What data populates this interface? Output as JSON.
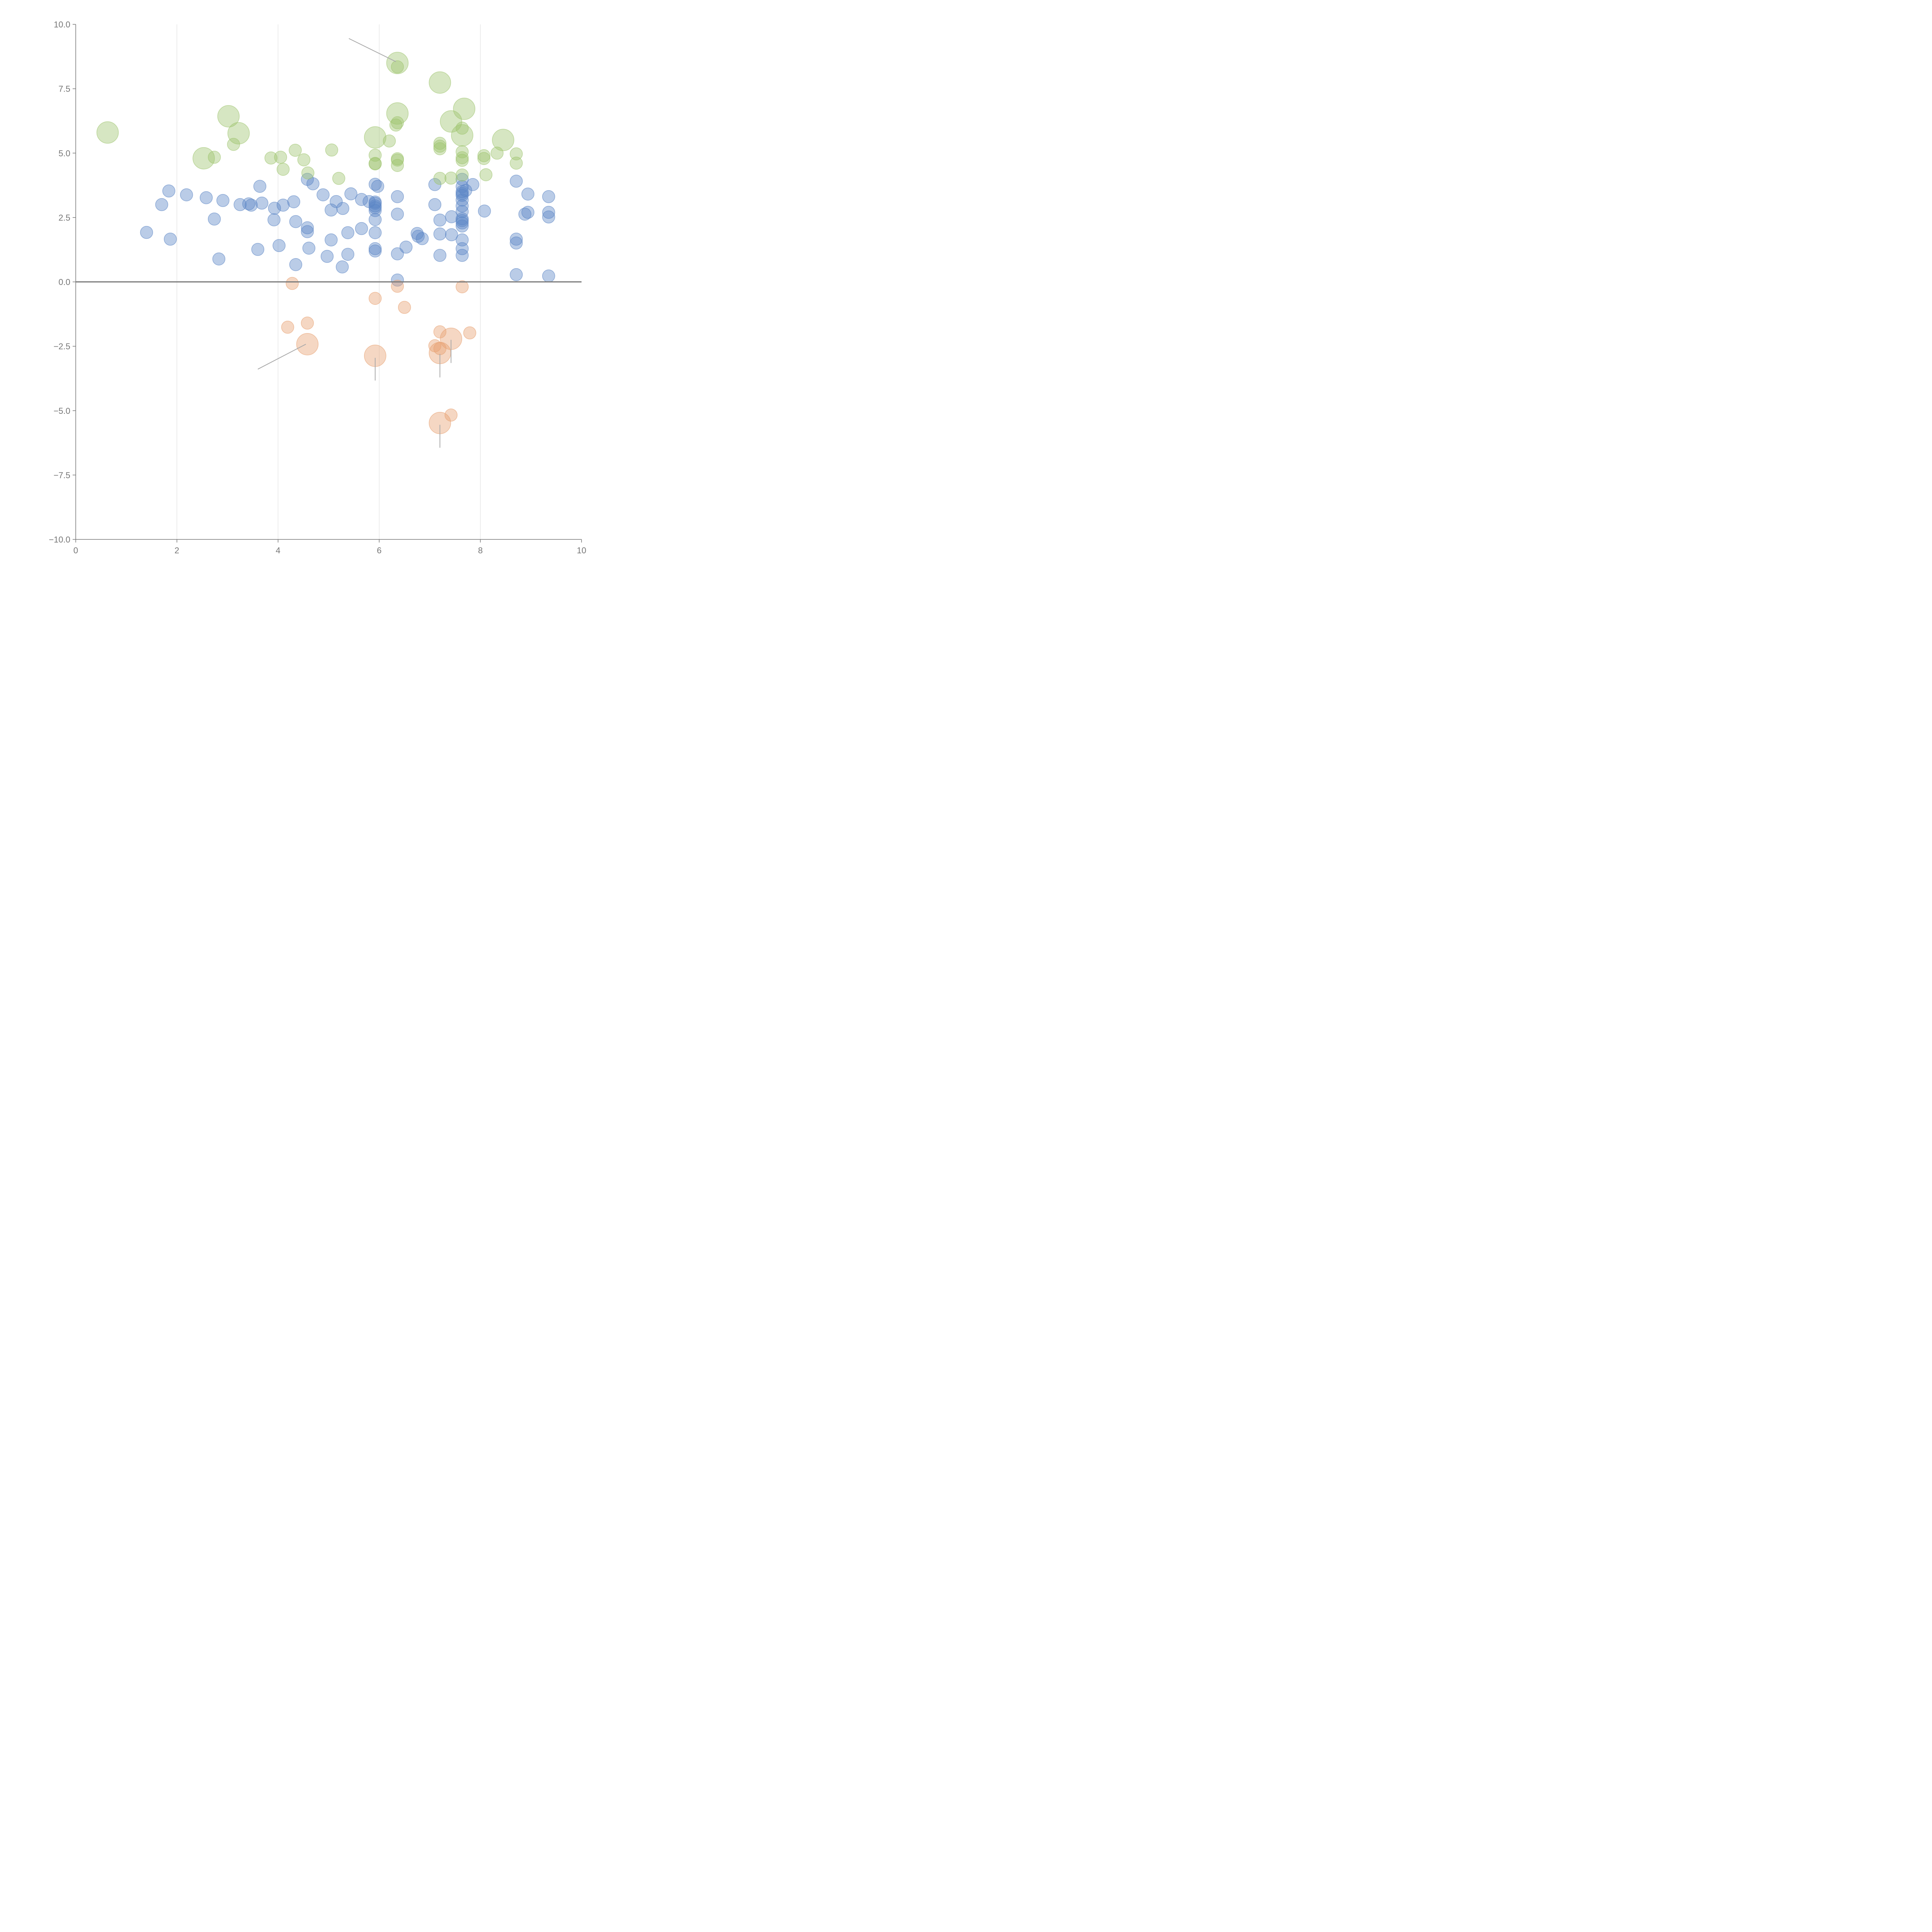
{
  "chart_data": {
    "type": "scatter",
    "subtype": "bubble",
    "title": "",
    "xlabel": "",
    "ylabel": "",
    "xlim": [
      0,
      10
    ],
    "ylim": [
      -10,
      10
    ],
    "x_ticks": [
      "0",
      "2",
      "4",
      "6",
      "8",
      "10"
    ],
    "y_ticks": [
      "10.0",
      "7.5",
      "5.0",
      "2.5",
      "0.0",
      "−2.5",
      "−5.0",
      "−7.5",
      "−10.0"
    ],
    "x_tick_values": [
      0,
      2,
      4,
      6,
      8,
      10
    ],
    "y_tick_values": [
      10,
      7.5,
      5,
      2.5,
      0,
      -2.5,
      -5,
      -7.5,
      -10
    ],
    "vertical_grid": true,
    "zero_line": true,
    "legend": "none",
    "series": [
      {
        "name": "blue",
        "color": "#5b86c5",
        "points": [
          [
            1.4,
            1.92,
            1
          ],
          [
            1.7,
            3.0,
            1
          ],
          [
            1.84,
            3.53,
            1
          ],
          [
            1.87,
            1.66,
            1
          ],
          [
            2.19,
            3.38,
            1
          ],
          [
            2.58,
            3.27,
            1
          ],
          [
            2.74,
            2.44,
            1
          ],
          [
            2.83,
            0.89,
            1
          ],
          [
            2.91,
            3.16,
            1
          ],
          [
            3.25,
            3.0,
            1
          ],
          [
            3.42,
            3.03,
            1
          ],
          [
            3.47,
            2.98,
            1
          ],
          [
            3.6,
            1.26,
            1
          ],
          [
            3.64,
            3.71,
            1
          ],
          [
            3.68,
            3.06,
            1
          ],
          [
            3.92,
            2.41,
            1
          ],
          [
            3.93,
            2.86,
            1
          ],
          [
            4.02,
            1.41,
            1
          ],
          [
            4.1,
            2.98,
            1
          ],
          [
            4.31,
            3.11,
            1
          ],
          [
            4.35,
            2.34,
            1
          ],
          [
            4.35,
            0.67,
            1
          ],
          [
            4.58,
            2.1,
            1
          ],
          [
            4.58,
            1.95,
            1
          ],
          [
            4.58,
            3.98,
            1
          ],
          [
            4.61,
            1.31,
            1
          ],
          [
            4.69,
            3.81,
            1
          ],
          [
            4.89,
            3.38,
            1
          ],
          [
            4.97,
            0.99,
            1
          ],
          [
            5.05,
            2.79,
            1
          ],
          [
            5.05,
            1.63,
            1
          ],
          [
            5.15,
            3.12,
            1
          ],
          [
            5.27,
            0.58,
            1
          ],
          [
            5.28,
            2.85,
            1
          ],
          [
            5.38,
            1.91,
            1
          ],
          [
            5.38,
            1.07,
            1
          ],
          [
            5.44,
            3.42,
            1
          ],
          [
            5.65,
            2.07,
            1
          ],
          [
            5.65,
            3.2,
            1
          ],
          [
            5.8,
            3.12,
            1
          ],
          [
            5.92,
            3.79,
            1
          ],
          [
            5.92,
            3.1,
            1
          ],
          [
            5.92,
            3.05,
            1
          ],
          [
            5.92,
            2.95,
            1
          ],
          [
            5.92,
            2.88,
            1
          ],
          [
            5.92,
            2.77,
            1
          ],
          [
            5.92,
            2.42,
            1
          ],
          [
            5.92,
            1.91,
            1
          ],
          [
            5.92,
            1.29,
            1
          ],
          [
            5.92,
            1.2,
            1
          ],
          [
            5.97,
            3.71,
            1
          ],
          [
            6.36,
            3.31,
            1
          ],
          [
            6.36,
            2.63,
            1
          ],
          [
            6.36,
            1.09,
            1
          ],
          [
            6.36,
            0.07,
            1
          ],
          [
            6.53,
            1.35,
            1
          ],
          [
            6.75,
            1.88,
            1
          ],
          [
            6.77,
            1.77,
            1
          ],
          [
            6.85,
            1.68,
            1
          ],
          [
            7.1,
            3.0,
            1
          ],
          [
            7.1,
            3.78,
            1
          ],
          [
            7.2,
            2.4,
            1
          ],
          [
            7.2,
            1.86,
            1
          ],
          [
            7.2,
            1.03,
            1
          ],
          [
            7.43,
            2.53,
            1
          ],
          [
            7.43,
            1.83,
            1
          ],
          [
            7.64,
            3.98,
            1
          ],
          [
            7.64,
            3.7,
            1
          ],
          [
            7.64,
            3.5,
            1
          ],
          [
            7.64,
            3.43,
            1
          ],
          [
            7.64,
            3.36,
            1
          ],
          [
            7.64,
            3.18,
            1
          ],
          [
            7.64,
            2.95,
            1
          ],
          [
            7.64,
            2.73,
            1
          ],
          [
            7.64,
            2.45,
            1
          ],
          [
            7.64,
            2.38,
            1
          ],
          [
            7.64,
            2.29,
            1
          ],
          [
            7.64,
            2.17,
            1
          ],
          [
            7.64,
            1.63,
            1
          ],
          [
            7.64,
            1.29,
            1
          ],
          [
            7.64,
            1.03,
            1
          ],
          [
            7.71,
            3.55,
            1
          ],
          [
            7.85,
            3.78,
            1
          ],
          [
            8.08,
            2.75,
            1
          ],
          [
            8.71,
            3.91,
            1
          ],
          [
            8.71,
            1.66,
            1
          ],
          [
            8.71,
            1.51,
            1
          ],
          [
            8.71,
            0.28,
            1
          ],
          [
            8.88,
            2.63,
            1
          ],
          [
            8.94,
            3.41,
            1
          ],
          [
            8.94,
            2.7,
            1
          ],
          [
            9.35,
            3.31,
            1
          ],
          [
            9.35,
            2.7,
            1
          ],
          [
            9.35,
            2.52,
            1
          ],
          [
            9.35,
            0.23,
            1
          ]
        ]
      },
      {
        "name": "green",
        "color": "#9ec46e",
        "points": [
          [
            0.63,
            5.8,
            2
          ],
          [
            2.53,
            4.8,
            2
          ],
          [
            2.74,
            4.84,
            1
          ],
          [
            3.02,
            6.43,
            2
          ],
          [
            3.12,
            5.34,
            1
          ],
          [
            3.22,
            5.77,
            2
          ],
          [
            3.86,
            4.81,
            1
          ],
          [
            4.05,
            4.84,
            1
          ],
          [
            4.1,
            4.37,
            1
          ],
          [
            4.34,
            5.11,
            1
          ],
          [
            4.51,
            4.74,
            1
          ],
          [
            4.59,
            4.23,
            1
          ],
          [
            5.06,
            5.12,
            1
          ],
          [
            5.2,
            4.02,
            1
          ],
          [
            5.92,
            5.61,
            2
          ],
          [
            5.92,
            4.92,
            1
          ],
          [
            5.92,
            4.6,
            1
          ],
          [
            5.92,
            4.58,
            1
          ],
          [
            6.2,
            5.47,
            1
          ],
          [
            6.33,
            6.09,
            1
          ],
          [
            6.36,
            8.5,
            2
          ],
          [
            6.36,
            8.35,
            1
          ],
          [
            6.36,
            6.54,
            2
          ],
          [
            6.36,
            6.18,
            1
          ],
          [
            6.36,
            4.78,
            1
          ],
          [
            6.36,
            4.73,
            1
          ],
          [
            6.36,
            4.52,
            1
          ],
          [
            7.2,
            7.74,
            2
          ],
          [
            7.2,
            5.38,
            1
          ],
          [
            7.2,
            5.27,
            1
          ],
          [
            7.2,
            5.17,
            1
          ],
          [
            7.2,
            4.02,
            1
          ],
          [
            7.42,
            6.23,
            2
          ],
          [
            7.42,
            4.03,
            1
          ],
          [
            7.64,
            5.69,
            2
          ],
          [
            7.64,
            5.97,
            1
          ],
          [
            7.64,
            5.05,
            1
          ],
          [
            7.64,
            4.82,
            1
          ],
          [
            7.64,
            4.72,
            1
          ],
          [
            7.64,
            4.15,
            1
          ],
          [
            7.68,
            6.72,
            2
          ],
          [
            8.07,
            4.9,
            1
          ],
          [
            8.07,
            4.79,
            1
          ],
          [
            8.11,
            4.16,
            1
          ],
          [
            8.33,
            5.0,
            1
          ],
          [
            8.45,
            5.51,
            2
          ],
          [
            8.71,
            4.97,
            1
          ],
          [
            8.71,
            4.61,
            1
          ]
        ]
      },
      {
        "name": "orange",
        "color": "#e8a070",
        "points": [
          [
            4.28,
            -0.06,
            1
          ],
          [
            4.19,
            -1.76,
            1
          ],
          [
            4.58,
            -1.6,
            1
          ],
          [
            4.58,
            -2.42,
            2
          ],
          [
            5.92,
            -0.64,
            1
          ],
          [
            5.92,
            -2.87,
            2
          ],
          [
            6.36,
            -0.17,
            1
          ],
          [
            6.5,
            -0.99,
            1
          ],
          [
            7.1,
            -2.48,
            1
          ],
          [
            7.2,
            -1.94,
            1
          ],
          [
            7.2,
            -2.59,
            1
          ],
          [
            7.2,
            -2.76,
            2
          ],
          [
            7.2,
            -5.48,
            2
          ],
          [
            7.42,
            -2.21,
            2
          ],
          [
            7.42,
            -5.17,
            1
          ],
          [
            7.64,
            -0.19,
            1
          ],
          [
            7.79,
            -1.98,
            1
          ]
        ]
      }
    ],
    "annotations": [
      {
        "label": "",
        "from": [
          5.4,
          9.45
        ],
        "to": [
          6.33,
          8.55
        ]
      },
      {
        "label": "",
        "from": [
          3.6,
          -3.39
        ],
        "to": [
          4.55,
          -2.42
        ]
      },
      {
        "label": "",
        "from": [
          5.92,
          -3.83
        ],
        "to": [
          5.92,
          -2.95
        ]
      },
      {
        "label": "",
        "from": [
          7.2,
          -3.71
        ],
        "to": [
          7.2,
          -2.8
        ]
      },
      {
        "label": "",
        "from": [
          7.42,
          -3.15
        ],
        "to": [
          7.42,
          -2.25
        ]
      },
      {
        "label": "",
        "from": [
          7.2,
          -6.44
        ],
        "to": [
          7.2,
          -5.55
        ]
      }
    ],
    "colors": {
      "axis": "#777777",
      "grid": "#dcdcdc",
      "zero_line": "#7a7a7a"
    }
  }
}
